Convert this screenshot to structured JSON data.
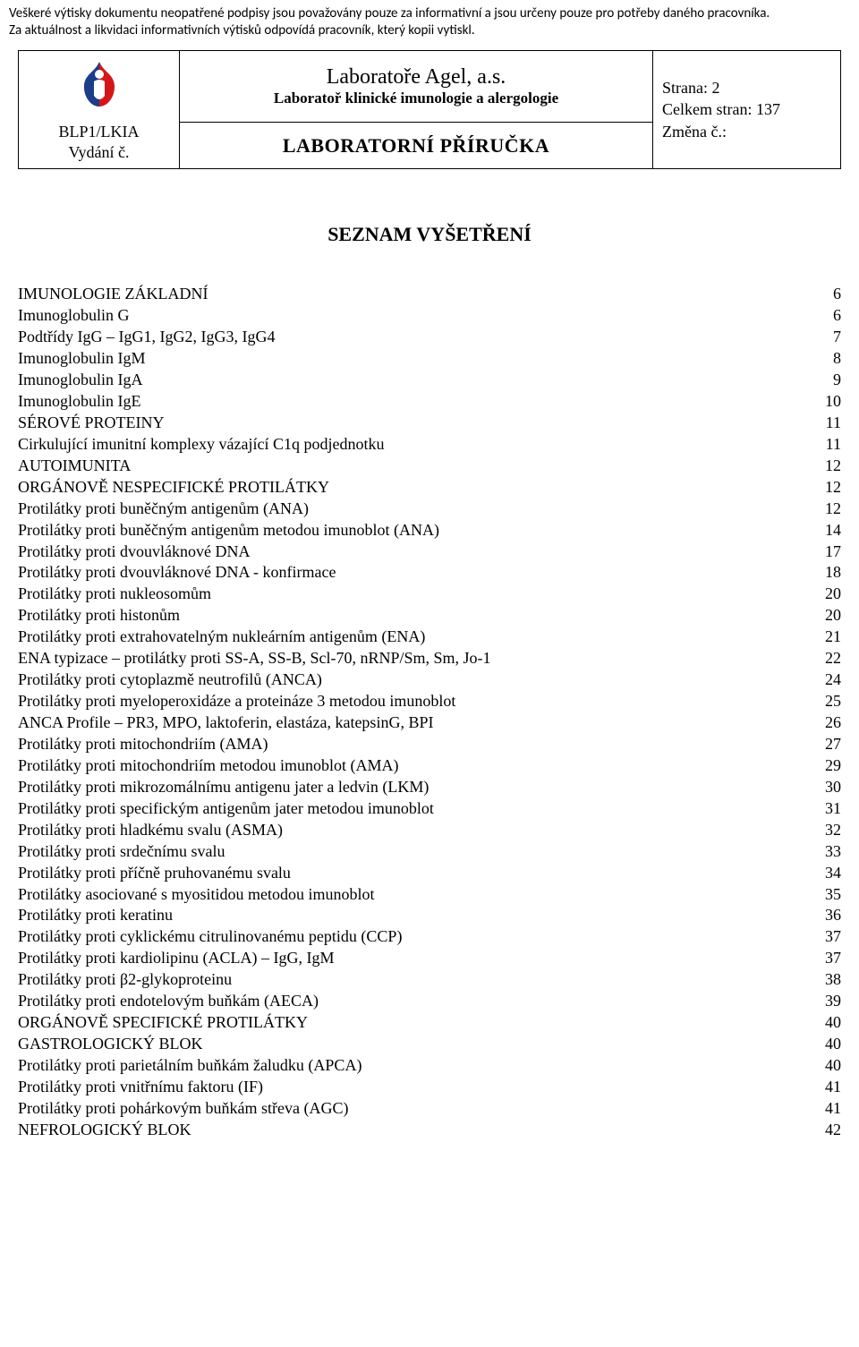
{
  "notice": {
    "line1": "Veškeré výtisky dokumentu  neopatřené podpisy jsou považovány pouze za informativní a jsou určeny pouze pro potřeby daného pracovníka.",
    "line2": "Za aktuálnost a likvidaci informativních výtisků odpovídá pracovník, který kopii vytiskl."
  },
  "header": {
    "code_line1": "BLP1/LKIA",
    "code_line2": "Vydání č.",
    "org_name": "Laboratoře Agel, a.s.",
    "dept_name": "Laboratoř klinické imunologie a alergologie",
    "doc_title": "LABORATORNÍ PŘÍRUČKA",
    "right_line1": "Strana: 2",
    "right_line2": "Celkem stran: 137",
    "right_line3": "Změna č.:",
    "logo_colors": {
      "red": "#d31718",
      "blue": "#1a3e8c",
      "white": "#ffffff"
    }
  },
  "section_title": "SEZNAM VYŠETŘENÍ",
  "toc": [
    {
      "title": "IMUNOLOGIE ZÁKLADNÍ",
      "page": "6"
    },
    {
      "title": "Imunoglobulin G",
      "page": "6"
    },
    {
      "title": "Podtřídy IgG – IgG1, IgG2, IgG3, IgG4",
      "page": "7"
    },
    {
      "title": "Imunoglobulin IgM",
      "page": "8"
    },
    {
      "title": "Imunoglobulin IgA",
      "page": "9"
    },
    {
      "title": "Imunoglobulin IgE",
      "page": "10"
    },
    {
      "title": "SÉROVÉ PROTEINY",
      "page": "11"
    },
    {
      "title": "Cirkulující imunitní komplexy vázající C1q podjednotku",
      "page": "11"
    },
    {
      "title": "AUTOIMUNITA",
      "page": "12"
    },
    {
      "title": "ORGÁNOVĚ NESPECIFICKÉ PROTILÁTKY",
      "page": "12"
    },
    {
      "title": "Protilátky proti buněčným antigenům (ANA)",
      "page": "12"
    },
    {
      "title": "Protilátky proti buněčným antigenům metodou imunoblot (ANA)",
      "page": "14"
    },
    {
      "title": "Protilátky proti dvouvláknové DNA",
      "page": "17"
    },
    {
      "title": "Protilátky proti dvouvláknové DNA - konfirmace",
      "page": "18"
    },
    {
      "title": "Protilátky proti nukleosomům",
      "page": "20"
    },
    {
      "title": "Protilátky proti histonům",
      "page": "20"
    },
    {
      "title": "Protilátky proti extrahovatelným nukleárním antigenům (ENA)",
      "page": "21"
    },
    {
      "title": "ENA typizace – protilátky proti SS-A, SS-B, Scl-70, nRNP/Sm, Sm, Jo-1",
      "page": "22"
    },
    {
      "title": "Protilátky proti cytoplazmě neutrofilů (ANCA)",
      "page": "24"
    },
    {
      "title": "Protilátky proti myeloperoxidáze a  proteináze 3 metodou imunoblot",
      "page": "25"
    },
    {
      "title": "ANCA Profile – PR3, MPO, laktoferin, elastáza, katepsinG, BPI",
      "page": "26"
    },
    {
      "title": "Protilátky proti mitochondriím (AMA)",
      "page": "27"
    },
    {
      "title": "Protilátky proti mitochondriím metodou imunoblot (AMA)",
      "page": "29"
    },
    {
      "title": "Protilátky proti mikrozomálnímu antigenu jater a ledvin (LKM)",
      "page": "30"
    },
    {
      "title": "Protilátky proti specifickým antigenům jater metodou imunoblot",
      "page": "31"
    },
    {
      "title": "Protilátky proti hladkému svalu (ASMA)",
      "page": "32"
    },
    {
      "title": "Protilátky proti srdečnímu svalu",
      "page": "33"
    },
    {
      "title": "Protilátky proti příčně pruhovanému svalu",
      "page": "34"
    },
    {
      "title": "Protilátky asociované s myositidou metodou imunoblot",
      "page": "35"
    },
    {
      "title": "Protilátky proti keratinu",
      "page": "36"
    },
    {
      "title": "Protilátky proti cyklickému citrulinovanému peptidu (CCP)",
      "page": "37"
    },
    {
      "title": "Protilátky proti kardiolipinu (ACLA) – IgG, IgM",
      "page": "37"
    },
    {
      "title": "Protilátky proti β2-glykoproteinu",
      "page": "38"
    },
    {
      "title": "Protilátky proti endotelovým buňkám (AECA)",
      "page": "39"
    },
    {
      "title": "ORGÁNOVĚ SPECIFICKÉ PROTILÁTKY",
      "page": "40"
    },
    {
      "title": "GASTROLOGICKÝ BLOK",
      "page": "40"
    },
    {
      "title": "Protilátky proti parietálním buňkám žaludku (APCA)",
      "page": "40"
    },
    {
      "title": "Protilátky proti vnitřnímu faktoru (IF)",
      "page": "41"
    },
    {
      "title": "Protilátky proti pohárkovým buňkám střeva (AGC)",
      "page": "41"
    },
    {
      "title": "NEFROLOGICKÝ BLOK",
      "page": "42"
    }
  ]
}
